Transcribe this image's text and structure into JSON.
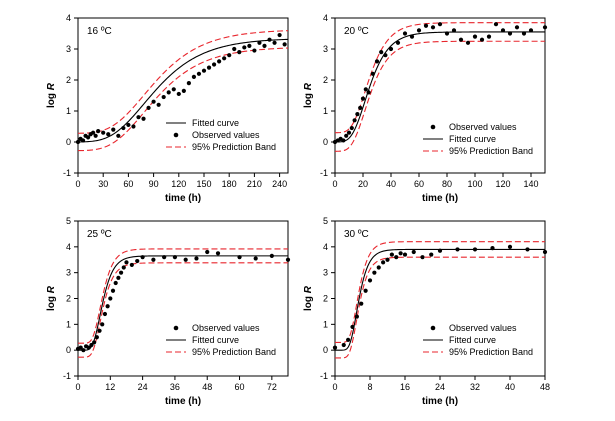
{
  "colors": {
    "fit": "#000000",
    "observed": "#000000",
    "band": "#e8262d"
  },
  "chart_data": [
    {
      "type": "scatter",
      "title": "16 ºC",
      "xlabel": "time (h)",
      "ylabel": "log R",
      "xlim": [
        0,
        250
      ],
      "ylim": [
        -1,
        4
      ],
      "xticks": [
        0,
        30,
        60,
        90,
        120,
        150,
        180,
        210,
        240
      ],
      "yticks": [
        -1,
        0,
        1,
        2,
        3,
        4
      ],
      "legend": "bottom-right",
      "legend_entries": [
        "Fitted curve",
        "Observed values",
        "95% Prediction Band"
      ],
      "model": {
        "A": 3.35,
        "mu": 0.032,
        "lambda": 40,
        "band": 0.28
      },
      "observed": {
        "x": [
          0,
          3,
          6,
          9,
          12,
          15,
          18,
          21,
          24,
          30,
          36,
          42,
          48,
          54,
          60,
          66,
          72,
          78,
          84,
          90,
          96,
          102,
          108,
          114,
          120,
          126,
          132,
          138,
          144,
          150,
          156,
          162,
          168,
          174,
          180,
          186,
          192,
          198,
          204,
          210,
          216,
          222,
          228,
          234,
          240,
          246
        ],
        "y": [
          0.0,
          0.1,
          0.05,
          0.2,
          0.15,
          0.25,
          0.3,
          0.2,
          0.35,
          0.3,
          0.25,
          0.4,
          0.2,
          0.45,
          0.55,
          0.5,
          0.8,
          0.75,
          1.1,
          1.3,
          1.2,
          1.45,
          1.6,
          1.7,
          1.55,
          1.65,
          1.9,
          2.1,
          2.2,
          2.3,
          2.4,
          2.5,
          2.6,
          2.7,
          2.8,
          3.0,
          2.9,
          3.05,
          3.1,
          2.95,
          3.2,
          3.1,
          3.3,
          3.2,
          3.45,
          3.15
        ]
      }
    },
    {
      "type": "scatter",
      "title": "20 ºC",
      "xlabel": "time (h)",
      "ylabel": "log R",
      "xlim": [
        0,
        150
      ],
      "ylim": [
        -1,
        4
      ],
      "xticks": [
        0,
        20,
        40,
        60,
        80,
        100,
        120,
        140
      ],
      "yticks": [
        -1,
        0,
        1,
        2,
        3,
        4
      ],
      "legend": "bottom-right",
      "legend_entries": [
        "Observed values",
        "Fitted curve",
        "95% Prediction Band"
      ],
      "model": {
        "A": 3.55,
        "mu": 0.14,
        "lambda": 12,
        "band": 0.3
      },
      "observed": {
        "x": [
          0,
          2,
          4,
          6,
          8,
          10,
          12,
          14,
          16,
          18,
          20,
          22,
          24,
          27,
          30,
          33,
          36,
          40,
          45,
          50,
          55,
          60,
          65,
          70,
          75,
          80,
          85,
          90,
          95,
          100,
          105,
          110,
          115,
          120,
          125,
          130,
          135,
          140,
          150
        ],
        "y": [
          0.0,
          0.05,
          0.1,
          0.05,
          0.2,
          0.3,
          0.45,
          0.7,
          0.9,
          1.1,
          1.4,
          1.7,
          1.6,
          2.2,
          2.6,
          2.9,
          2.8,
          3.0,
          3.2,
          3.5,
          3.4,
          3.6,
          3.75,
          3.7,
          3.8,
          3.5,
          3.6,
          3.3,
          3.2,
          3.4,
          3.3,
          3.4,
          3.8,
          3.6,
          3.5,
          3.7,
          3.5,
          3.6,
          3.7
        ]
      }
    },
    {
      "type": "scatter",
      "title": "25 ºC",
      "xlabel": "time (h)",
      "ylabel": "log R",
      "xlim": [
        0,
        78
      ],
      "ylim": [
        -1,
        5
      ],
      "xticks": [
        0,
        12,
        24,
        36,
        48,
        60,
        72
      ],
      "yticks": [
        -1,
        0,
        1,
        2,
        3,
        4,
        5
      ],
      "legend": "bottom-right",
      "legend_entries": [
        "Observed values",
        "Fitted curve",
        "95% Prediction Band"
      ],
      "model": {
        "A": 3.65,
        "mu": 0.5,
        "lambda": 5.5,
        "band": 0.27
      },
      "observed": {
        "x": [
          0,
          1,
          2,
          3,
          4,
          5,
          6,
          7,
          8,
          9,
          10,
          11,
          12,
          13,
          14,
          15,
          16,
          17,
          18,
          20,
          22,
          24,
          28,
          32,
          36,
          40,
          44,
          48,
          52,
          60,
          66,
          72,
          78
        ],
        "y": [
          0.05,
          0.1,
          0.0,
          0.15,
          0.1,
          0.2,
          0.3,
          0.5,
          0.75,
          1.0,
          1.4,
          1.7,
          2.0,
          2.3,
          2.6,
          2.8,
          3.0,
          3.2,
          3.4,
          3.3,
          3.45,
          3.6,
          3.5,
          3.6,
          3.6,
          3.5,
          3.55,
          3.8,
          3.75,
          3.6,
          3.55,
          3.65,
          3.5
        ]
      }
    },
    {
      "type": "scatter",
      "title": "30 ºC",
      "xlabel": "time (h)",
      "ylabel": "log R",
      "xlim": [
        0,
        48
      ],
      "ylim": [
        -1,
        5
      ],
      "xticks": [
        0,
        8,
        16,
        24,
        32,
        40,
        48
      ],
      "yticks": [
        -1,
        0,
        1,
        2,
        3,
        4,
        5
      ],
      "legend": "bottom-right",
      "legend_entries": [
        "Observed values",
        "Fitted curve",
        "95% Prediction Band"
      ],
      "model": {
        "A": 3.9,
        "mu": 0.95,
        "lambda": 3.4,
        "band": 0.3
      },
      "observed": {
        "x": [
          0,
          2,
          3,
          4,
          5,
          6,
          7,
          8,
          9,
          10,
          11,
          12,
          13,
          14,
          15,
          16,
          18,
          20,
          22,
          24,
          28,
          32,
          36,
          40,
          44,
          48
        ],
        "y": [
          0.1,
          0.2,
          0.4,
          0.9,
          1.3,
          1.8,
          2.3,
          2.7,
          3.0,
          3.2,
          3.4,
          3.5,
          3.7,
          3.6,
          3.75,
          3.7,
          3.8,
          3.6,
          3.7,
          3.85,
          3.9,
          3.9,
          3.95,
          4.0,
          3.9,
          3.8
        ]
      }
    }
  ]
}
